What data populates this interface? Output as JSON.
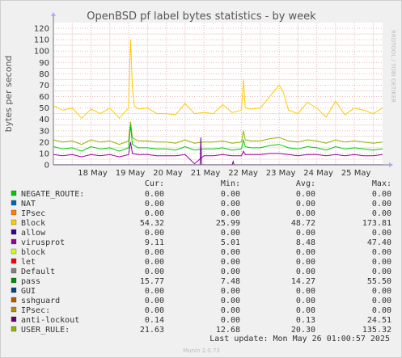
{
  "chart_data": {
    "type": "line",
    "title": "OpenBSD pf label bytes statistics - by week",
    "ylabel": "bytes per second",
    "watermark": "RRDTOOL / TOBI OETIKER",
    "ylim": [
      0,
      125
    ],
    "yticks": [
      0,
      10,
      20,
      30,
      40,
      50,
      60,
      70,
      80,
      90,
      100,
      110,
      120
    ],
    "xlim": [
      0,
      8.75
    ],
    "xticks": [
      {
        "x": 1,
        "label": "18 May"
      },
      {
        "x": 2,
        "label": "19 May"
      },
      {
        "x": 3,
        "label": "20 May"
      },
      {
        "x": 4,
        "label": "21 May"
      },
      {
        "x": 5,
        "label": "22 May"
      },
      {
        "x": 6,
        "label": "23 May"
      },
      {
        "x": 7,
        "label": "24 May"
      },
      {
        "x": 8,
        "label": "25 May"
      }
    ],
    "grid": true,
    "series": [
      {
        "name": "Block",
        "color": "#FFCC00",
        "x": [
          0,
          0.25,
          0.5,
          0.75,
          1,
          1.25,
          1.5,
          1.75,
          2,
          2.05,
          2.1,
          2.15,
          2.25,
          2.5,
          2.75,
          3,
          3.25,
          3.5,
          3.75,
          4,
          4.25,
          4.5,
          4.75,
          5,
          5.05,
          5.1,
          5.25,
          5.5,
          5.75,
          6,
          6.1,
          6.25,
          6.5,
          6.75,
          7,
          7.25,
          7.5,
          7.75,
          8,
          8.25,
          8.5,
          8.75
        ],
        "y": [
          52,
          48,
          50,
          41,
          49,
          45,
          50,
          41,
          50,
          110,
          68,
          52,
          49,
          50,
          45,
          45,
          44,
          54,
          45,
          46,
          45,
          53,
          46,
          48,
          75,
          50,
          49,
          50,
          60,
          70,
          65,
          48,
          45,
          55,
          50,
          42,
          56,
          44,
          50,
          48,
          45,
          50
        ]
      },
      {
        "name": "USER_RULE:",
        "color": "#8FB300",
        "x": [
          0,
          0.25,
          0.5,
          0.75,
          1,
          1.25,
          1.5,
          1.75,
          2,
          2.05,
          2.1,
          2.25,
          2.5,
          2.75,
          3,
          3.25,
          3.5,
          3.75,
          4,
          4.25,
          4.5,
          4.75,
          5,
          5.05,
          5.1,
          5.25,
          5.5,
          5.75,
          6,
          6.25,
          6.5,
          6.75,
          7,
          7.25,
          7.5,
          7.75,
          8,
          8.25,
          8.5,
          8.75
        ],
        "y": [
          22,
          20,
          21,
          18,
          22,
          20,
          21,
          18,
          21,
          38,
          24,
          21,
          21,
          20,
          20,
          19,
          22,
          19,
          20,
          20,
          21,
          19,
          20,
          30,
          22,
          21,
          21,
          23,
          24,
          21,
          20,
          22,
          21,
          19,
          22,
          20,
          21,
          20,
          19,
          20
        ]
      },
      {
        "name": "pass",
        "color": "#00CC00",
        "x": [
          0,
          0.25,
          0.5,
          0.75,
          1,
          1.25,
          1.5,
          1.75,
          2,
          2.05,
          2.1,
          2.25,
          2.5,
          2.75,
          3,
          3.25,
          3.5,
          3.75,
          4,
          4.25,
          4.5,
          4.75,
          5,
          5.05,
          5.1,
          5.25,
          5.5,
          5.75,
          6,
          6.25,
          6.5,
          6.75,
          7,
          7.25,
          7.5,
          7.75,
          8,
          8.25,
          8.5,
          8.75
        ],
        "y": [
          16,
          14,
          15,
          12,
          16,
          14,
          15,
          12,
          15,
          35,
          18,
          15,
          15,
          14,
          14,
          13,
          16,
          13,
          14,
          14,
          15,
          13,
          14,
          22,
          16,
          15,
          15,
          17,
          18,
          15,
          14,
          16,
          15,
          13,
          16,
          14,
          15,
          14,
          13,
          14
        ]
      },
      {
        "name": "virusprot",
        "color": "#990099",
        "x": [
          0,
          0.25,
          0.5,
          0.75,
          1,
          1.25,
          1.5,
          1.75,
          2,
          2.05,
          2.1,
          2.25,
          2.5,
          2.75,
          3,
          3.25,
          3.5,
          3.75,
          4,
          4.25,
          4.5,
          4.75,
          5,
          5.05,
          5.1,
          5.25,
          5.5,
          5.75,
          6,
          6.25,
          6.5,
          6.75,
          7,
          7.25,
          7.5,
          7.75,
          8,
          8.25,
          8.5,
          8.75
        ],
        "y": [
          9,
          8,
          9,
          7,
          9,
          8,
          9,
          7,
          9,
          20,
          10,
          9,
          9,
          8,
          8,
          8,
          9,
          1,
          8,
          8,
          9,
          8,
          8,
          12,
          9,
          9,
          9,
          10,
          10,
          9,
          8,
          9,
          9,
          8,
          9,
          8,
          9,
          8,
          8,
          9
        ]
      },
      {
        "name": "anti-lockout",
        "color": "#6B0099",
        "x": [
          0,
          3.9,
          3.92,
          3.94,
          4.75,
          4.78,
          4.8,
          8.75
        ],
        "y": [
          0.1,
          0.1,
          24,
          0.1,
          0.1,
          3,
          0.1,
          0.1
        ]
      }
    ]
  },
  "legend": {
    "headers": {
      "cur": "Cur:",
      "min": "Min:",
      "avg": "Avg:",
      "max": "Max:"
    },
    "rows": [
      {
        "name": "NEGATE_ROUTE:",
        "color": "#00CC00",
        "cur": "0.00",
        "min": "0.00",
        "avg": "0.00",
        "max": "0.00"
      },
      {
        "name": "NAT",
        "color": "#0066B3",
        "cur": "0.00",
        "min": "0.00",
        "avg": "0.00",
        "max": "0.00"
      },
      {
        "name": "IPsec",
        "color": "#FF8000",
        "cur": "0.00",
        "min": "0.00",
        "avg": "0.00",
        "max": "0.00"
      },
      {
        "name": "Block",
        "color": "#FFCC00",
        "cur": "54.32",
        "min": "25.99",
        "avg": "48.72",
        "max": "173.81"
      },
      {
        "name": "allow",
        "color": "#330099",
        "cur": "0.00",
        "min": "0.00",
        "avg": "0.00",
        "max": "0.00"
      },
      {
        "name": "virusprot",
        "color": "#990099",
        "cur": "9.11",
        "min": "5.01",
        "avg": "8.48",
        "max": "47.40"
      },
      {
        "name": "block",
        "color": "#CCFF00",
        "cur": "0.00",
        "min": "0.00",
        "avg": "0.00",
        "max": "0.00"
      },
      {
        "name": "let",
        "color": "#FF0000",
        "cur": "0.00",
        "min": "0.00",
        "avg": "0.00",
        "max": "0.00"
      },
      {
        "name": "Default",
        "color": "#808080",
        "cur": "0.00",
        "min": "0.00",
        "avg": "0.00",
        "max": "0.00"
      },
      {
        "name": "pass",
        "color": "#008F00",
        "cur": "15.77",
        "min": "7.48",
        "avg": "14.27",
        "max": "55.50"
      },
      {
        "name": "GUI",
        "color": "#00487D",
        "cur": "0.00",
        "min": "0.00",
        "avg": "0.00",
        "max": "0.00"
      },
      {
        "name": "sshguard",
        "color": "#B35A00",
        "cur": "0.00",
        "min": "0.00",
        "avg": "0.00",
        "max": "0.00"
      },
      {
        "name": "IPsec:",
        "color": "#B38F00",
        "cur": "0.00",
        "min": "0.00",
        "avg": "0.00",
        "max": "0.00"
      },
      {
        "name": "anti-lockout",
        "color": "#6B006B",
        "cur": "0.14",
        "min": "0.00",
        "avg": "0.13",
        "max": "24.51"
      },
      {
        "name": "USER_RULE:",
        "color": "#8FB300",
        "cur": "21.63",
        "min": "12.68",
        "avg": "20.30",
        "max": "135.32"
      }
    ]
  },
  "footer": {
    "last_update": "Last update: Mon May 26 01:00:57 2025",
    "version": "Munin 2.0.73"
  }
}
